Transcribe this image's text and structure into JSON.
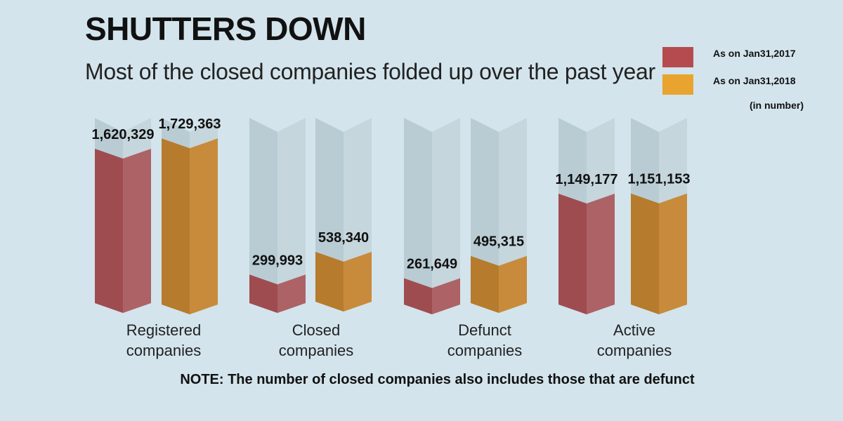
{
  "title": "SHUTTERS DOWN",
  "subtitle": "Most of the closed companies folded up over the  past year",
  "legend": [
    {
      "label": "As on Jan31,2017",
      "color": "#b54b4f"
    },
    {
      "label": "As on Jan31,2018",
      "color": "#e8a42e"
    }
  ],
  "unit_note": "(in number)",
  "note": "NOTE: The number of closed companies also includes those that are defunct",
  "chart_data": {
    "type": "bar",
    "categories": [
      {
        "line1": "Registered",
        "line2": "companies"
      },
      {
        "line1": "Closed",
        "line2": "companies"
      },
      {
        "line1": "Defunct",
        "line2": "companies"
      },
      {
        "line1": "Active",
        "line2": "companies"
      }
    ],
    "series": [
      {
        "name": "As on Jan31,2017",
        "values": [
          1620329,
          299993,
          261649,
          1149177
        ],
        "labels": [
          "1,620,329",
          "299,993",
          "261,649",
          "1,149,177"
        ]
      },
      {
        "name": "As on Jan31,2018",
        "values": [
          1729363,
          538340,
          495315,
          1151153
        ],
        "labels": [
          "1,729,363",
          "538,340",
          "495,315",
          "1,151,153"
        ]
      }
    ],
    "colors": {
      "s0_front": "#9e4c50",
      "s0_side": "#ad6266",
      "s1_front": "#b67b2c",
      "s1_side": "#c88b3b",
      "ghost_front": "#b9ccd4",
      "ghost_side": "#c6d6dd"
    },
    "grid": false
  }
}
